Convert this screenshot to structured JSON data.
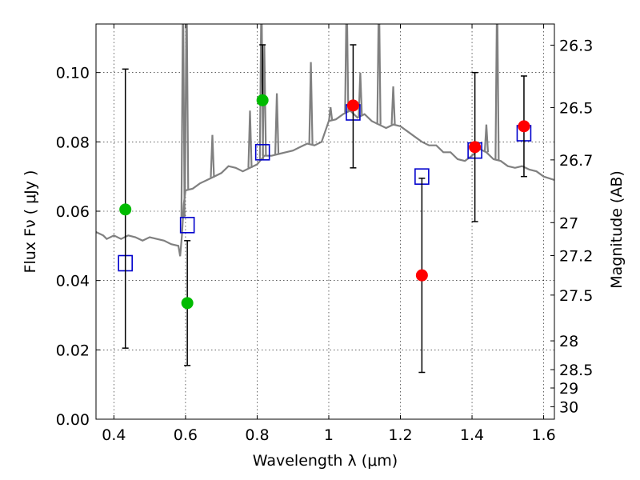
{
  "chart_data": {
    "type": "scatter",
    "xlabel": "Wavelength  λ (μm)",
    "ylabel": "Flux  Fν  ( μJy )",
    "y2label": "Magnitude (AB)",
    "xlim": [
      0.35,
      1.63
    ],
    "ylim": [
      0.0,
      0.114
    ],
    "xticks": [
      0.4,
      0.6,
      0.8,
      1.0,
      1.2,
      1.4,
      1.6
    ],
    "xtick_labels": [
      "0.4",
      "0.6",
      "0.8",
      "1",
      "1.2",
      "1.4",
      "1.6"
    ],
    "yticks": [
      0.0,
      0.02,
      0.04,
      0.06,
      0.08,
      0.1
    ],
    "ytick_labels": [
      "0.00",
      "0.02",
      "0.04",
      "0.06",
      "0.08",
      "0.10"
    ],
    "y2ticks": [
      {
        "label": "26.3",
        "flux": 0.1079
      },
      {
        "label": "26.5",
        "flux": 0.0899
      },
      {
        "label": "26.7",
        "flux": 0.0748
      },
      {
        "label": "27",
        "flux": 0.0567
      },
      {
        "label": "27.2",
        "flux": 0.0472
      },
      {
        "label": "27.5",
        "flux": 0.0358
      },
      {
        "label": "28",
        "flux": 0.0226
      },
      {
        "label": "28.5",
        "flux": 0.0143
      },
      {
        "label": "29",
        "flux": 0.009
      },
      {
        "label": "30",
        "flux": 0.0036
      }
    ],
    "grid": true,
    "colors": {
      "spectrum": "#808080",
      "model": "#0000cc",
      "green_points": "#00bb00",
      "red_points": "#ff0000",
      "errorbar": "#000000"
    },
    "spectrum": {
      "x": [
        0.35,
        0.37,
        0.38,
        0.4,
        0.42,
        0.44,
        0.46,
        0.48,
        0.5,
        0.52,
        0.54,
        0.56,
        0.58,
        0.585,
        0.59,
        0.595,
        0.6,
        0.62,
        0.64,
        0.66,
        0.68,
        0.7,
        0.72,
        0.74,
        0.76,
        0.78,
        0.8,
        0.82,
        0.84,
        0.86,
        0.88,
        0.9,
        0.92,
        0.94,
        0.96,
        0.98,
        1.0,
        1.02,
        1.04,
        1.06,
        1.08,
        1.1,
        1.12,
        1.14,
        1.16,
        1.18,
        1.2,
        1.22,
        1.24,
        1.26,
        1.28,
        1.3,
        1.32,
        1.34,
        1.36,
        1.38,
        1.4,
        1.42,
        1.44,
        1.46,
        1.48,
        1.5,
        1.52,
        1.54,
        1.56,
        1.58,
        1.6,
        1.63
      ],
      "y": [
        0.054,
        0.053,
        0.052,
        0.053,
        0.052,
        0.053,
        0.0525,
        0.0515,
        0.0525,
        0.052,
        0.0515,
        0.0505,
        0.05,
        0.047,
        0.053,
        0.062,
        0.066,
        0.0665,
        0.068,
        0.069,
        0.07,
        0.071,
        0.073,
        0.0725,
        0.0715,
        0.0725,
        0.0735,
        0.076,
        0.076,
        0.0765,
        0.077,
        0.0775,
        0.0785,
        0.0795,
        0.079,
        0.08,
        0.086,
        0.0865,
        0.088,
        0.089,
        0.087,
        0.088,
        0.086,
        0.085,
        0.084,
        0.085,
        0.0845,
        0.083,
        0.0815,
        0.08,
        0.079,
        0.079,
        0.077,
        0.077,
        0.075,
        0.0745,
        0.076,
        0.078,
        0.077,
        0.075,
        0.0745,
        0.073,
        0.0725,
        0.073,
        0.072,
        0.0715,
        0.07,
        0.069
      ]
    },
    "emission_lines": [
      {
        "x": 0.593,
        "peak": 0.125
      },
      {
        "x": 0.603,
        "peak": 0.125
      },
      {
        "x": 0.675,
        "peak": 0.082
      },
      {
        "x": 0.78,
        "peak": 0.089
      },
      {
        "x": 0.812,
        "peak": 0.125
      },
      {
        "x": 0.82,
        "peak": 0.108
      },
      {
        "x": 0.855,
        "peak": 0.094
      },
      {
        "x": 0.95,
        "peak": 0.103
      },
      {
        "x": 1.005,
        "peak": 0.09
      },
      {
        "x": 1.05,
        "peak": 0.125
      },
      {
        "x": 1.088,
        "peak": 0.1
      },
      {
        "x": 1.14,
        "peak": 0.125
      },
      {
        "x": 1.18,
        "peak": 0.096
      },
      {
        "x": 1.44,
        "peak": 0.085
      },
      {
        "x": 1.47,
        "peak": 0.125
      }
    ],
    "model_points": {
      "x": [
        0.432,
        0.605,
        0.815,
        1.068,
        1.26,
        1.408,
        1.545
      ],
      "y": [
        0.045,
        0.056,
        0.077,
        0.0885,
        0.07,
        0.0775,
        0.0825
      ]
    },
    "observed_points": [
      {
        "x": 0.432,
        "y": 0.0605,
        "yerr_low": 0.0205,
        "yerr_high": 0.101,
        "color": "green"
      },
      {
        "x": 0.605,
        "y": 0.0335,
        "yerr_low": 0.0155,
        "yerr_high": 0.0515,
        "color": "green"
      },
      {
        "x": 0.815,
        "y": 0.092,
        "yerr_low": null,
        "yerr_high": 0.108,
        "color": "green"
      },
      {
        "x": 1.068,
        "y": 0.0905,
        "yerr_low": 0.0725,
        "yerr_high": 0.108,
        "color": "red"
      },
      {
        "x": 1.26,
        "y": 0.0415,
        "yerr_low": 0.0135,
        "yerr_high": 0.0695,
        "color": "red"
      },
      {
        "x": 1.408,
        "y": 0.0785,
        "yerr_low": 0.057,
        "yerr_high": 0.1,
        "color": "red"
      },
      {
        "x": 1.545,
        "y": 0.0845,
        "yerr_low": 0.07,
        "yerr_high": 0.099,
        "color": "red"
      }
    ]
  }
}
